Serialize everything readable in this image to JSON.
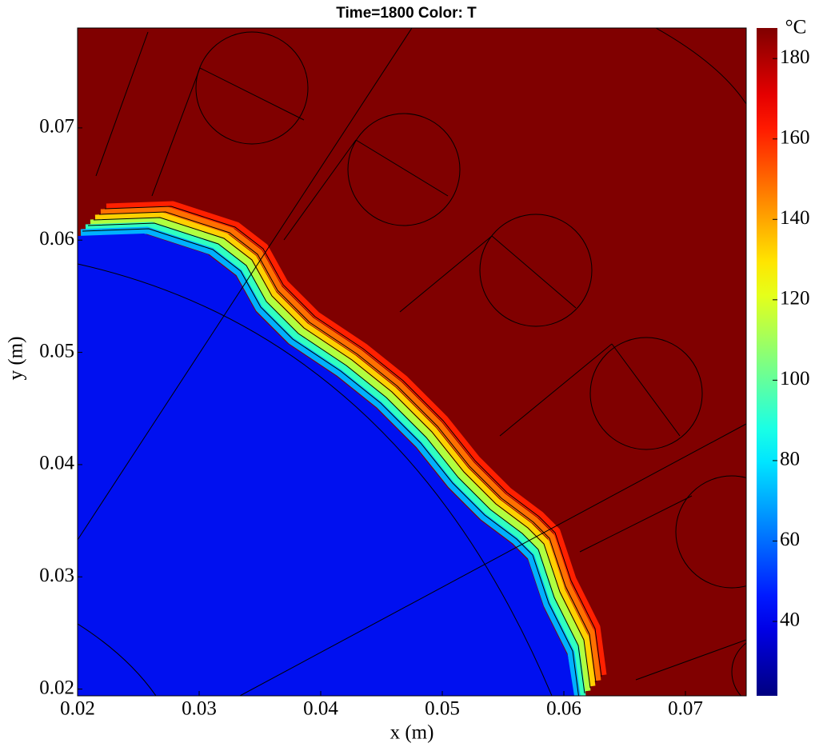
{
  "chart_data": {
    "type": "heatmap",
    "title": "Time=1800   Color: T",
    "x_label": "x (m)",
    "y_label": "y (m)",
    "colorbar_label": "°C",
    "xlim": [
      0.02,
      0.075
    ],
    "xticks": [
      0.02,
      0.03,
      0.04,
      0.05,
      0.06,
      0.07
    ],
    "ylim": [
      0.0194,
      0.0789
    ],
    "yticks": [
      0.02,
      0.03,
      0.04,
      0.05,
      0.06,
      0.07
    ],
    "clim": [
      21.5,
      187.6
    ],
    "cticks": [
      40,
      60,
      80,
      100,
      120,
      140,
      160,
      180
    ],
    "colormap": "jet"
  }
}
